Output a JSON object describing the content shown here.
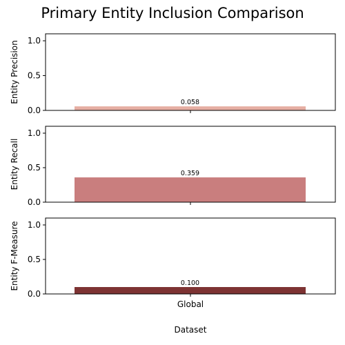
{
  "chart_data": {
    "type": "bar",
    "title": "Primary Entity Inclusion Comparison",
    "xlabel": "Dataset",
    "categories": [
      "Global"
    ],
    "ylim": [
      0,
      1.1
    ],
    "yticks": [
      "0.0",
      "0.5",
      "1.0"
    ],
    "grid": false,
    "panels": [
      {
        "ylabel": "Entity Precision",
        "values": [
          0.058
        ],
        "value_label": "0.058",
        "color": "#e6aea3"
      },
      {
        "ylabel": "Entity Recall",
        "values": [
          0.359
        ],
        "value_label": "0.359",
        "color": "#c97e7e"
      },
      {
        "ylabel": "Entity F-Measure",
        "values": [
          0.1
        ],
        "value_label": "0.100",
        "color": "#7d3333"
      }
    ]
  }
}
